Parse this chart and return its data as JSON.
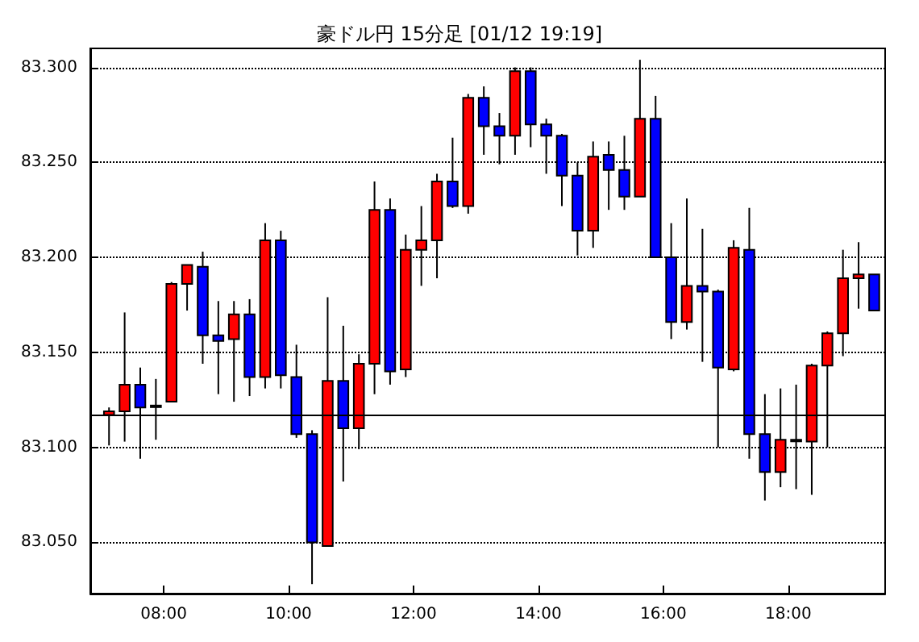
{
  "chart_data": {
    "type": "candlestick",
    "title": "豪ドル円 15分足 [01/12 19:19]",
    "x": [
      7.125,
      7.375,
      7.625,
      7.875,
      8.125,
      8.375,
      8.625,
      8.875,
      9.125,
      9.375,
      9.625,
      9.875,
      10.125,
      10.375,
      10.625,
      10.875,
      11.125,
      11.375,
      11.625,
      11.875,
      12.125,
      12.375,
      12.625,
      12.875,
      13.125,
      13.375,
      13.625,
      13.875,
      14.125,
      14.375,
      14.625,
      14.875,
      15.125,
      15.375,
      15.625,
      15.875,
      16.125,
      16.375,
      16.625,
      16.875,
      17.125,
      17.375,
      17.625,
      17.875,
      18.125,
      18.375,
      18.625,
      18.875,
      19.125,
      19.375
    ],
    "ohlc": [
      [
        83.117,
        83.121,
        83.101,
        83.119
      ],
      [
        83.119,
        83.171,
        83.103,
        83.133
      ],
      [
        83.133,
        83.142,
        83.094,
        83.121
      ],
      [
        83.122,
        83.136,
        83.104,
        83.122
      ],
      [
        83.124,
        83.187,
        83.124,
        83.186
      ],
      [
        83.186,
        83.196,
        83.172,
        83.196
      ],
      [
        83.195,
        83.203,
        83.144,
        83.159
      ],
      [
        83.159,
        83.177,
        83.128,
        83.156
      ],
      [
        83.157,
        83.177,
        83.124,
        83.17
      ],
      [
        83.17,
        83.178,
        83.127,
        83.137
      ],
      [
        83.137,
        83.218,
        83.131,
        83.209
      ],
      [
        83.209,
        83.214,
        83.131,
        83.138
      ],
      [
        83.137,
        83.154,
        83.105,
        83.107
      ],
      [
        83.107,
        83.109,
        83.028,
        83.05
      ],
      [
        83.048,
        83.179,
        83.048,
        83.135
      ],
      [
        83.135,
        83.164,
        83.082,
        83.11
      ],
      [
        83.11,
        83.149,
        83.099,
        83.144
      ],
      [
        83.144,
        83.24,
        83.128,
        83.225
      ],
      [
        83.225,
        83.231,
        83.133,
        83.14
      ],
      [
        83.141,
        83.212,
        83.137,
        83.204
      ],
      [
        83.204,
        83.227,
        83.185,
        83.209
      ],
      [
        83.209,
        83.244,
        83.189,
        83.24
      ],
      [
        83.24,
        83.263,
        83.226,
        83.227
      ],
      [
        83.227,
        83.286,
        83.223,
        83.284
      ],
      [
        83.284,
        83.29,
        83.254,
        83.269
      ],
      [
        83.269,
        83.276,
        83.249,
        83.264
      ],
      [
        83.264,
        83.3,
        83.254,
        83.298
      ],
      [
        83.298,
        83.3,
        83.258,
        83.27
      ],
      [
        83.27,
        83.273,
        83.244,
        83.264
      ],
      [
        83.264,
        83.265,
        83.227,
        83.243
      ],
      [
        83.243,
        83.25,
        83.201,
        83.214
      ],
      [
        83.214,
        83.261,
        83.205,
        83.253
      ],
      [
        83.254,
        83.261,
        83.225,
        83.246
      ],
      [
        83.246,
        83.264,
        83.225,
        83.232
      ],
      [
        83.232,
        83.304,
        83.232,
        83.273
      ],
      [
        83.273,
        83.285,
        83.2,
        83.2
      ],
      [
        83.2,
        83.218,
        83.157,
        83.166
      ],
      [
        83.166,
        83.231,
        83.162,
        83.185
      ],
      [
        83.185,
        83.215,
        83.145,
        83.182
      ],
      [
        83.182,
        83.183,
        83.1,
        83.142
      ],
      [
        83.141,
        83.209,
        83.14,
        83.205
      ],
      [
        83.204,
        83.226,
        83.094,
        83.107
      ],
      [
        83.107,
        83.128,
        83.072,
        83.087
      ],
      [
        83.087,
        83.131,
        83.079,
        83.104
      ],
      [
        83.104,
        83.133,
        83.078,
        83.104
      ],
      [
        83.103,
        83.144,
        83.075,
        83.143
      ],
      [
        83.143,
        83.161,
        83.1,
        83.16
      ],
      [
        83.16,
        83.204,
        83.148,
        83.189
      ],
      [
        83.189,
        83.208,
        83.173,
        83.191
      ],
      [
        83.191,
        83.191,
        83.172,
        83.172
      ]
    ],
    "colors": [
      "#ff0000",
      "#ff0000",
      "#0000ff",
      "#000000",
      "#ff0000",
      "#ff0000",
      "#0000ff",
      "#0000ff",
      "#ff0000",
      "#0000ff",
      "#ff0000",
      "#0000ff",
      "#0000ff",
      "#0000ff",
      "#ff0000",
      "#0000ff",
      "#ff0000",
      "#ff0000",
      "#0000ff",
      "#ff0000",
      "#ff0000",
      "#ff0000",
      "#0000ff",
      "#ff0000",
      "#0000ff",
      "#0000ff",
      "#ff0000",
      "#0000ff",
      "#0000ff",
      "#0000ff",
      "#0000ff",
      "#ff0000",
      "#0000ff",
      "#0000ff",
      "#ff0000",
      "#0000ff",
      "#0000ff",
      "#ff0000",
      "#0000ff",
      "#0000ff",
      "#ff0000",
      "#0000ff",
      "#0000ff",
      "#ff0000",
      "#000000",
      "#ff0000",
      "#ff0000",
      "#ff0000",
      "#ff0000",
      "#0000ff"
    ],
    "xlim": [
      6.825,
      19.55
    ],
    "xticks": [
      {
        "value": 8,
        "label": "08:00"
      },
      {
        "value": 10,
        "label": "10:00"
      },
      {
        "value": 12,
        "label": "12:00"
      },
      {
        "value": 14,
        "label": "14:00"
      },
      {
        "value": 16,
        "label": "16:00"
      },
      {
        "value": 18,
        "label": "18:00"
      }
    ],
    "ylim": [
      83.023,
      83.31
    ],
    "yticks": [
      {
        "value": 83.05,
        "label": "83.050"
      },
      {
        "value": 83.1,
        "label": "83.100"
      },
      {
        "value": 83.15,
        "label": "83.150"
      },
      {
        "value": 83.2,
        "label": "83.200"
      },
      {
        "value": 83.25,
        "label": "83.250"
      },
      {
        "value": 83.3,
        "label": "83.300"
      }
    ],
    "ref_lines": [
      {
        "axis": "y",
        "value": 83.117,
        "color": "#000000",
        "line_style": "solid"
      }
    ],
    "grid": "y"
  }
}
